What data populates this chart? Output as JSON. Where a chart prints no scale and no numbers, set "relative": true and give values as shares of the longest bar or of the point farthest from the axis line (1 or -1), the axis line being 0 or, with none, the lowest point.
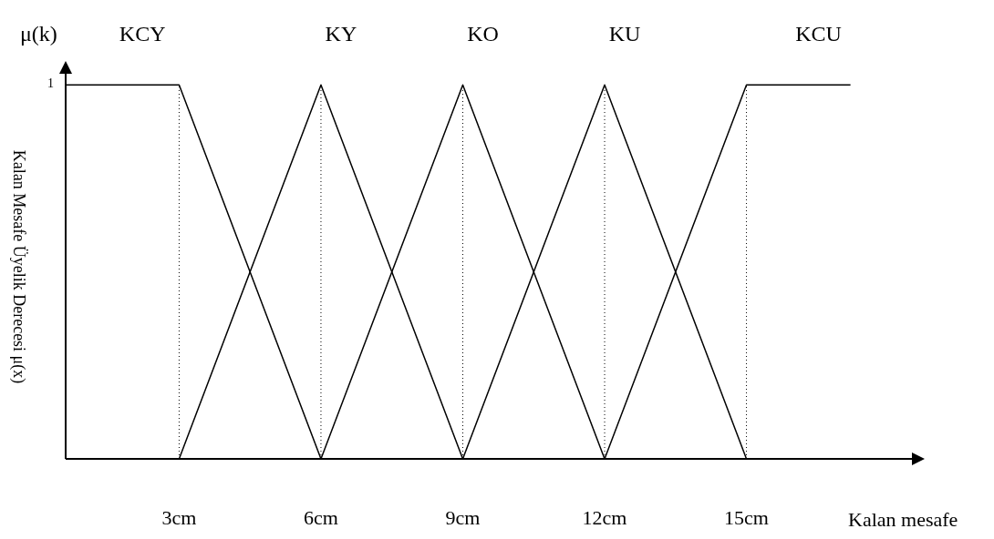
{
  "chart_data": {
    "type": "line",
    "title": "μ(k)",
    "ylabel": "Kalan Mesafe Üyelik Derecesi μ(x)",
    "xlabel": "Kalan mesafe",
    "xlim": [
      0.6,
      18.5
    ],
    "xticks": [
      {
        "value": 3,
        "label": "3cm"
      },
      {
        "value": 6,
        "label": "6cm"
      },
      {
        "value": 9,
        "label": "9cm"
      },
      {
        "value": 12,
        "label": "12cm"
      },
      {
        "value": 15,
        "label": "15cm"
      }
    ],
    "relative": true,
    "annotations": [
      "1"
    ],
    "grid": false,
    "series": [
      {
        "name": "KCY",
        "color": "#000000",
        "x": [
          0.6,
          3,
          6
        ],
        "values": [
          1,
          1,
          0
        ]
      },
      {
        "name": "KY",
        "color": "#000000",
        "x": [
          3,
          6,
          9
        ],
        "values": [
          0,
          1,
          0
        ]
      },
      {
        "name": "KO",
        "color": "#000000",
        "x": [
          6,
          9,
          12
        ],
        "values": [
          0,
          1,
          0
        ]
      },
      {
        "name": "KU",
        "color": "#000000",
        "x": [
          9,
          12,
          15
        ],
        "values": [
          0,
          1,
          0
        ]
      },
      {
        "name": "KCU",
        "color": "#000000",
        "x": [
          12,
          15,
          17.2
        ],
        "values": [
          0,
          1,
          1
        ]
      }
    ],
    "ref_lines": [
      {
        "axis": "x",
        "value": 3,
        "line_style": "dotted",
        "color": "#000000"
      },
      {
        "axis": "x",
        "value": 6,
        "line_style": "dotted",
        "color": "#000000"
      },
      {
        "axis": "x",
        "value": 9,
        "line_style": "dotted",
        "color": "#000000"
      },
      {
        "axis": "x",
        "value": 12,
        "line_style": "dotted",
        "color": "#000000"
      },
      {
        "axis": "x",
        "value": 15,
        "line_style": "dotted",
        "color": "#000000"
      }
    ]
  }
}
